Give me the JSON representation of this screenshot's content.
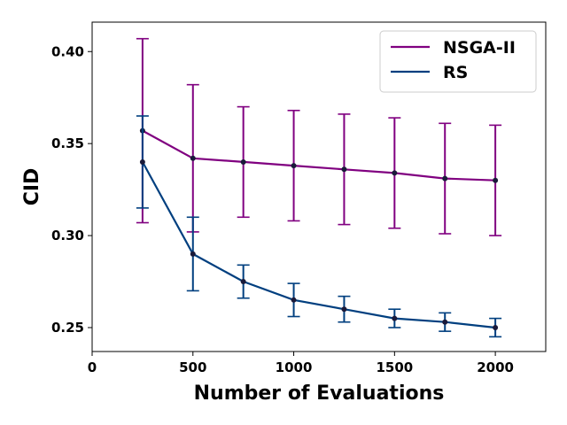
{
  "chart_data": {
    "type": "line",
    "title": "",
    "xlabel": "Number of Evaluations",
    "ylabel": "CID",
    "xlim": [
      0,
      2250
    ],
    "ylim": [
      0.237,
      0.416
    ],
    "xticks": [
      0,
      500,
      1000,
      1500,
      2000
    ],
    "xtick_labels": [
      "0",
      "500",
      "1000",
      "1500",
      "2000"
    ],
    "yticks": [
      0.25,
      0.3,
      0.35,
      0.4
    ],
    "ytick_labels": [
      "0.25",
      "0.30",
      "0.35",
      "0.40"
    ],
    "grid": false,
    "legend_position": "top-right",
    "x": [
      250,
      500,
      750,
      1000,
      1250,
      1500,
      1750,
      2000
    ],
    "series": [
      {
        "name": "NSGA-II",
        "color": "#800080",
        "values": [
          0.357,
          0.342,
          0.34,
          0.338,
          0.336,
          0.334,
          0.331,
          0.33
        ],
        "error": [
          0.05,
          0.04,
          0.03,
          0.03,
          0.03,
          0.03,
          0.03,
          0.03
        ]
      },
      {
        "name": "RS",
        "color": "#003f7f",
        "values": [
          0.34,
          0.29,
          0.275,
          0.265,
          0.26,
          0.255,
          0.253,
          0.25
        ],
        "error": [
          0.025,
          0.02,
          0.009,
          0.009,
          0.007,
          0.005,
          0.005,
          0.005
        ]
      }
    ],
    "marker_color": "#1a1a3a"
  }
}
